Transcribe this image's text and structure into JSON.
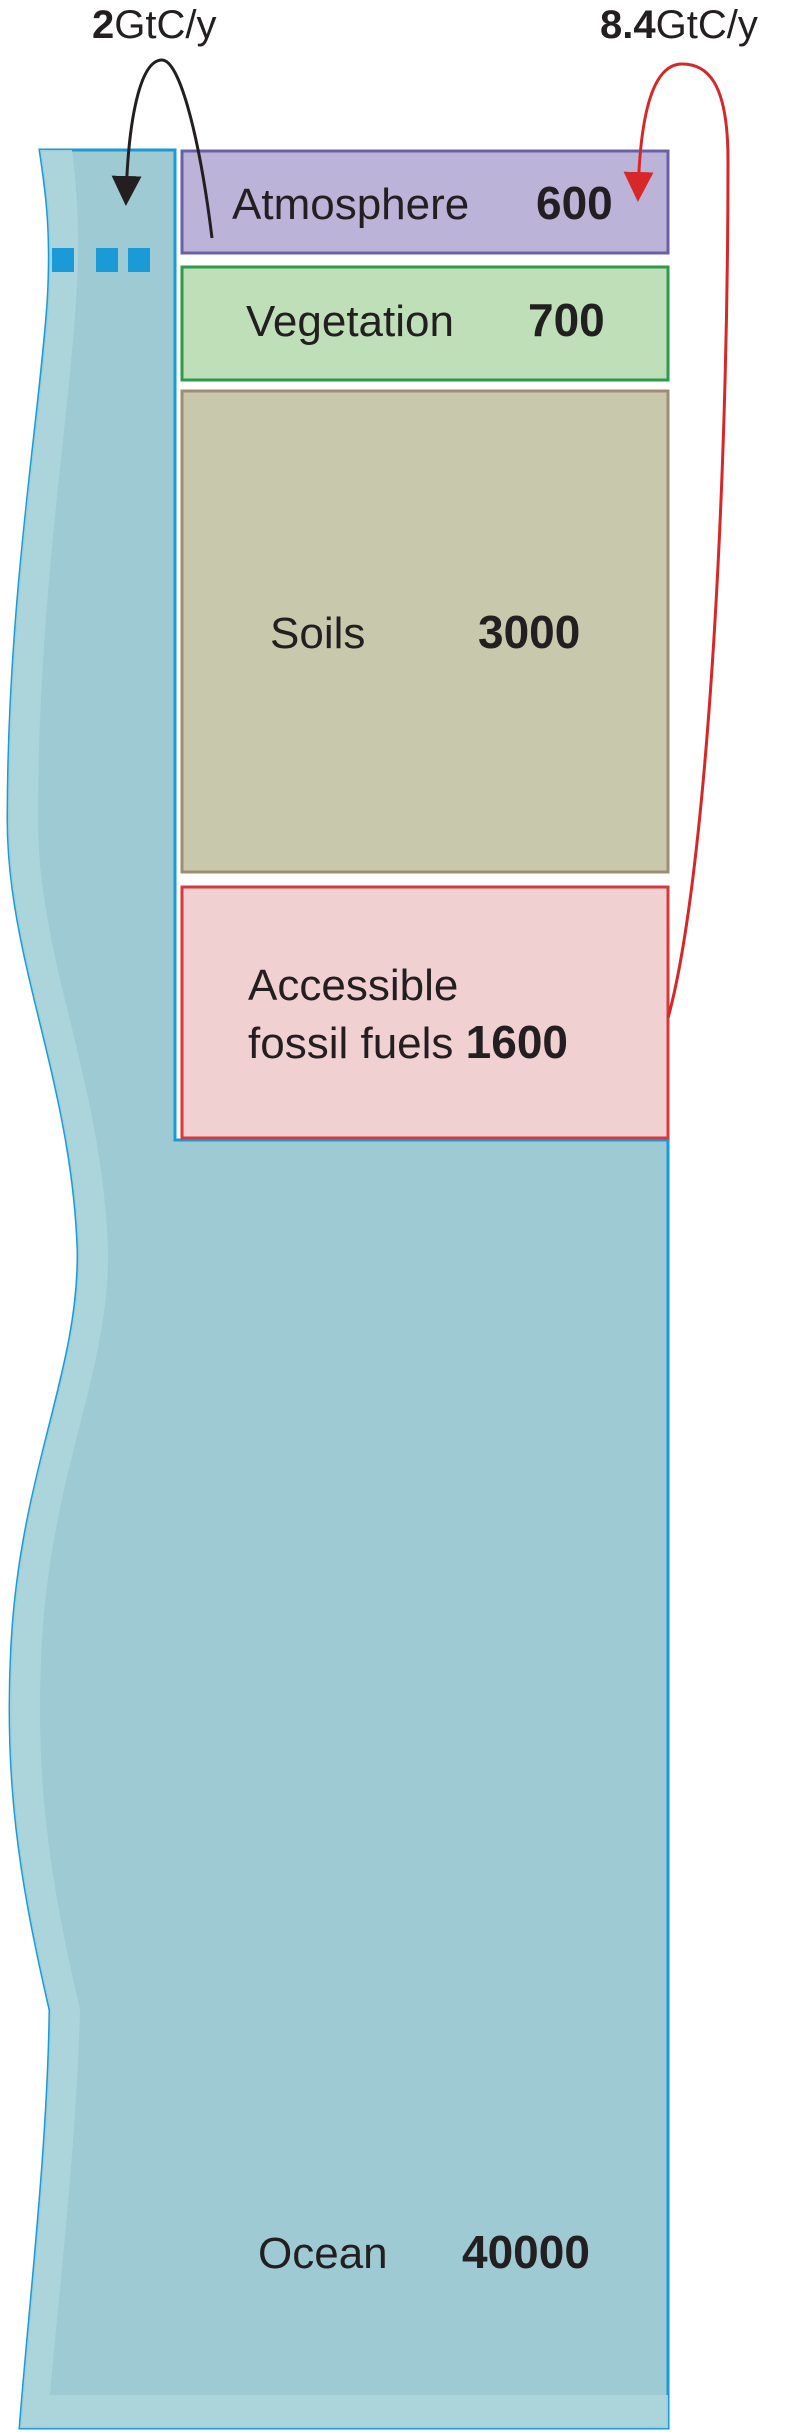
{
  "flows": {
    "ocean": {
      "value": "2",
      "unit": "GtC/y"
    },
    "fossil": {
      "value": "8.4",
      "unit": "GtC/y"
    }
  },
  "reservoirs": {
    "atmosphere": {
      "label": "Atmosphere",
      "value": "600",
      "color": "#bcb3d9",
      "border": "#6a5fa8"
    },
    "vegetation": {
      "label": "Vegetation",
      "value": "700",
      "color": "#bfdfb9",
      "border": "#2e9a4a"
    },
    "soils": {
      "label": "Soils",
      "value": "3000",
      "color": "#c8c8ad",
      "border": "#a08c73"
    },
    "fossil_fuels": {
      "label_line1": "Accessible",
      "label_line2": "fossil fuels",
      "value": "1600",
      "color": "#f1d0d2",
      "border": "#d6393d"
    },
    "ocean": {
      "label": "Ocean",
      "value": "40000",
      "color": "#9ecbd3",
      "border": "#1a9ad6"
    }
  },
  "colors": {
    "arrow_ocean": "#231f20",
    "arrow_fossil": "#d62828",
    "ocean_edge_light": "#acd6dc",
    "ocean_dash": "#1a9ad6"
  }
}
